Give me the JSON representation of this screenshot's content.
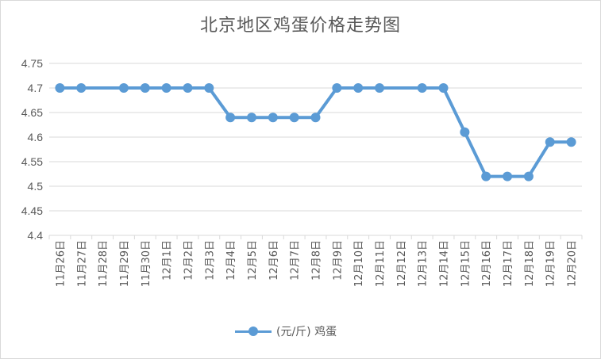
{
  "chart_data": {
    "type": "line",
    "title": "北京地区鸡蛋价格走势图",
    "categories": [
      "11月26日",
      "11月27日",
      "11月28日",
      "11月29日",
      "11月30日",
      "12月1日",
      "12月2日",
      "12月3日",
      "12月4日",
      "12月5日",
      "12月6日",
      "12月7日",
      "12月8日",
      "12月9日",
      "12月10日",
      "12月11日",
      "12月12日",
      "12月13日",
      "12月14日",
      "12月15日",
      "12月16日",
      "12月17日",
      "12月18日",
      "12月19日",
      "12月20日"
    ],
    "series": [
      {
        "name": "(元/斤) 鸡蛋",
        "color": "#5b9bd5",
        "values": [
          4.7,
          4.7,
          null,
          4.7,
          4.7,
          4.7,
          4.7,
          4.7,
          4.64,
          4.64,
          4.64,
          4.64,
          4.64,
          4.7,
          4.7,
          4.7,
          null,
          4.7,
          4.7,
          4.61,
          4.52,
          4.52,
          4.52,
          4.59,
          4.59
        ]
      }
    ],
    "ylim": [
      4.4,
      4.75
    ],
    "yticks": [
      "4.4",
      "4.45",
      "4.5",
      "4.55",
      "4.6",
      "4.65",
      "4.7",
      "4.75"
    ],
    "grid": true,
    "legend_position": "bottom"
  }
}
